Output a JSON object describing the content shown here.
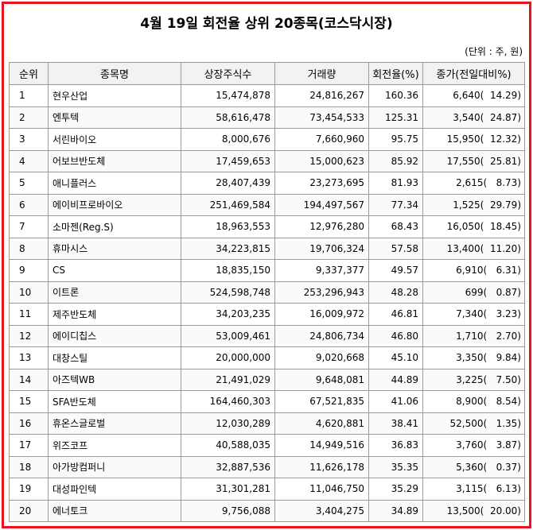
{
  "title": "4월 19일 회전율 상위 20종목(코스닥시장)",
  "unit_note": "(단위 : 주, 원)",
  "colors": {
    "frame_border": "#e8141b",
    "header_bg": "#f2f2f2",
    "grid": "#9a9a9a"
  },
  "headers": [
    "순위",
    "종목명",
    "상장주식수",
    "거래량",
    "회전율(%)",
    "종가(전일대비%)"
  ],
  "rows": [
    {
      "rank": "1",
      "name": "현우산업",
      "shares": "15,474,878",
      "volume": "24,816,267",
      "turnover": "160.36",
      "price": "6,640(  14.29)"
    },
    {
      "rank": "2",
      "name": "엔투텍",
      "shares": "58,616,478",
      "volume": "73,454,533",
      "turnover": "125.31",
      "price": "3,540(  24.87)"
    },
    {
      "rank": "3",
      "name": "서린바이오",
      "shares": "8,000,676",
      "volume": "7,660,960",
      "turnover": "95.75",
      "price": "15,950(  12.32)"
    },
    {
      "rank": "4",
      "name": "어보브반도체",
      "shares": "17,459,653",
      "volume": "15,000,623",
      "turnover": "85.92",
      "price": "17,550(  25.81)"
    },
    {
      "rank": "5",
      "name": "애니플러스",
      "shares": "28,407,439",
      "volume": "23,273,695",
      "turnover": "81.93",
      "price": "2,615(   8.73)"
    },
    {
      "rank": "6",
      "name": "에이비프로바이오",
      "shares": "251,469,584",
      "volume": "194,497,567",
      "turnover": "77.34",
      "price": "1,525(  29.79)"
    },
    {
      "rank": "7",
      "name": "소마젠(Reg.S)",
      "shares": "18,963,553",
      "volume": "12,976,280",
      "turnover": "68.43",
      "price": "16,050(  18.45)"
    },
    {
      "rank": "8",
      "name": "휴마시스",
      "shares": "34,223,815",
      "volume": "19,706,324",
      "turnover": "57.58",
      "price": "13,400(  11.20)"
    },
    {
      "rank": "9",
      "name": "CS",
      "shares": "18,835,150",
      "volume": "9,337,377",
      "turnover": "49.57",
      "price": "6,910(   6.31)"
    },
    {
      "rank": "10",
      "name": "이트론",
      "shares": "524,598,748",
      "volume": "253,296,943",
      "turnover": "48.28",
      "price": "699(   0.87)"
    },
    {
      "rank": "11",
      "name": "제주반도체",
      "shares": "34,203,235",
      "volume": "16,009,972",
      "turnover": "46.81",
      "price": "7,340(   3.23)"
    },
    {
      "rank": "12",
      "name": "에이디칩스",
      "shares": "53,009,461",
      "volume": "24,806,734",
      "turnover": "46.80",
      "price": "1,710(   2.70)"
    },
    {
      "rank": "13",
      "name": "대창스틸",
      "shares": "20,000,000",
      "volume": "9,020,668",
      "turnover": "45.10",
      "price": "3,350(   9.84)"
    },
    {
      "rank": "14",
      "name": "아즈텍WB",
      "shares": "21,491,029",
      "volume": "9,648,081",
      "turnover": "44.89",
      "price": "3,225(   7.50)"
    },
    {
      "rank": "15",
      "name": "SFA반도체",
      "shares": "164,460,303",
      "volume": "67,521,835",
      "turnover": "41.06",
      "price": "8,900(   8.54)"
    },
    {
      "rank": "16",
      "name": "휴온스글로벌",
      "shares": "12,030,289",
      "volume": "4,620,881",
      "turnover": "38.41",
      "price": "52,500(   1.35)"
    },
    {
      "rank": "17",
      "name": "위즈코프",
      "shares": "40,588,035",
      "volume": "14,949,516",
      "turnover": "36.83",
      "price": "3,760(   3.87)"
    },
    {
      "rank": "18",
      "name": "아가방컴퍼니",
      "shares": "32,887,536",
      "volume": "11,626,178",
      "turnover": "35.35",
      "price": "5,360(   0.37)"
    },
    {
      "rank": "19",
      "name": "대성파인텍",
      "shares": "31,301,281",
      "volume": "11,046,750",
      "turnover": "35.29",
      "price": "3,115(   6.13)"
    },
    {
      "rank": "20",
      "name": "에너토크",
      "shares": "9,756,088",
      "volume": "3,404,275",
      "turnover": "34.89",
      "price": "13,500(  20.00)"
    }
  ]
}
